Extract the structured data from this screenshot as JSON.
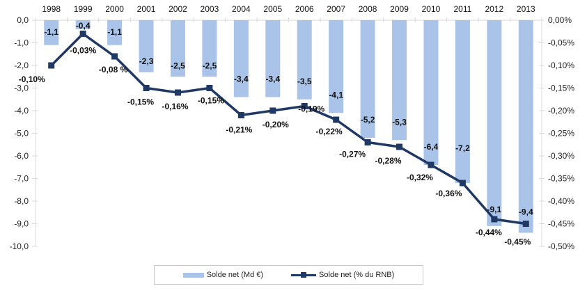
{
  "chart_data": {
    "type": "bar+line",
    "title": "",
    "categories": [
      "1998",
      "1999",
      "2000",
      "2001",
      "2002",
      "2003",
      "2004",
      "2005",
      "2006",
      "2007",
      "2008",
      "2009",
      "2010",
      "2011",
      "2012",
      "2013"
    ],
    "series": [
      {
        "name": "Solde net (Md €)",
        "type": "bar",
        "axis": "left",
        "color": "#a9c4e8",
        "values": [
          -1.1,
          -0.4,
          -1.1,
          -2.3,
          -2.5,
          -2.5,
          -3.4,
          -3.4,
          -3.5,
          -4.1,
          -5.2,
          -5.3,
          -6.4,
          -7.2,
          -9.1,
          -9.4
        ],
        "labels": [
          "-1,1",
          "-0,4",
          "-1,1",
          "-2,3",
          "-2,5",
          "-2,5",
          "-3,4",
          "-3,4",
          "-3,5",
          "-4,1",
          "-5,2",
          "-5,3",
          "-6,4",
          "-7,2",
          "-9,1",
          "-9,4"
        ]
      },
      {
        "name": "Solde net (% du RNB)",
        "type": "line",
        "axis": "right",
        "color": "#1f3864",
        "values": [
          -0.1,
          -0.03,
          -0.08,
          -0.15,
          -0.16,
          -0.15,
          -0.21,
          -0.2,
          -0.19,
          -0.22,
          -0.27,
          -0.28,
          -0.32,
          -0.36,
          -0.44,
          -0.45
        ],
        "labels": [
          "-0,10%",
          "-0,03%",
          "-0,08 %",
          "-0,15%",
          "-0,16%",
          "-0,15%",
          "-0,21%",
          "-0,20%",
          "-0,19%",
          "-0,22%",
          "-0,27%",
          "-0,28%",
          "-0,32%",
          "-0,36%",
          "-0,44%",
          "-0,45%"
        ]
      }
    ],
    "left_axis": {
      "range": [
        -10,
        0
      ],
      "ticks": [
        "0,0",
        "-1,0",
        "-2,0",
        "-3,0",
        "-4,0",
        "-5,0",
        "-6,0",
        "-7,0",
        "-8,0",
        "-9,0",
        "-10,0"
      ]
    },
    "right_axis": {
      "range": [
        -0.5,
        0
      ],
      "ticks": [
        "0,00%",
        "-0,05%",
        "-0,10%",
        "-0,15%",
        "-0,20%",
        "-0,25%",
        "-0,30%",
        "-0,35%",
        "-0,40%",
        "-0,45%",
        "-0,50%"
      ]
    },
    "xaxis_position": "top",
    "grid": false,
    "legend": "bottom"
  },
  "legend": {
    "bar_label": "Solde net (Md €)",
    "line_label": "Solde net (% du RNB)"
  }
}
